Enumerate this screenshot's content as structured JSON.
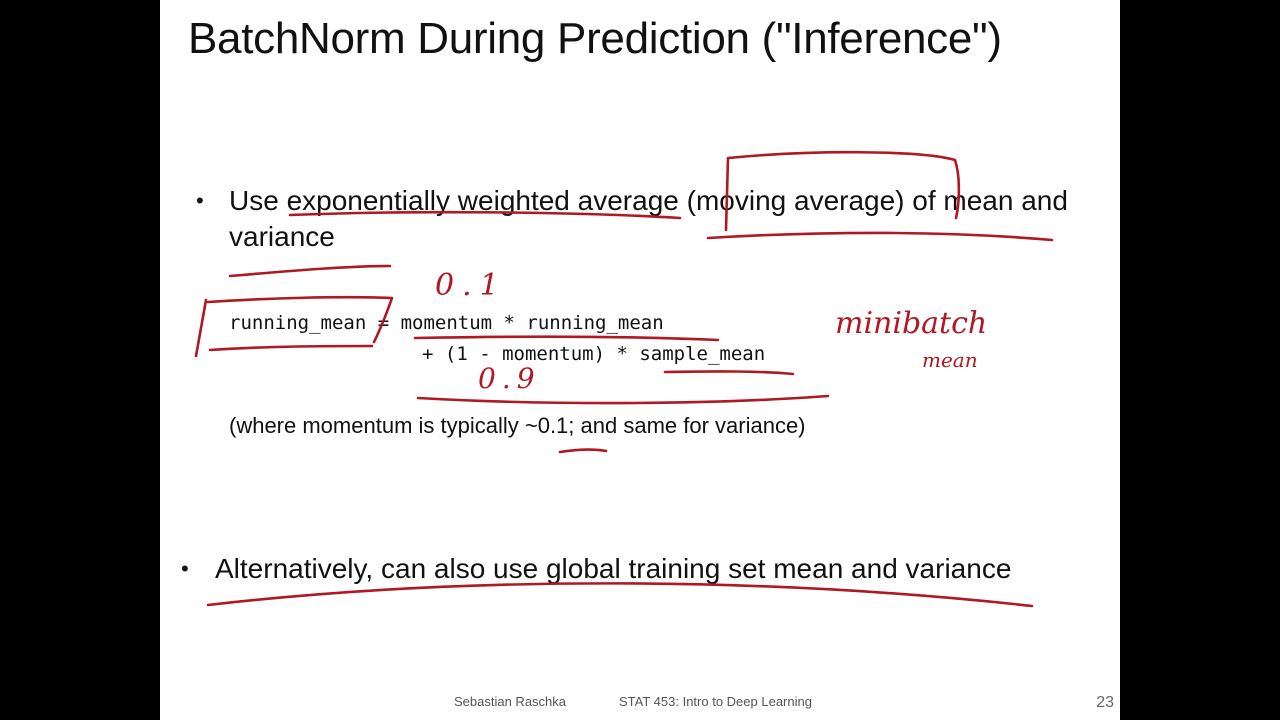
{
  "slide": {
    "title": "BatchNorm During Prediction (\"Inference\")",
    "bullet_symbol": "•",
    "bullet1": "Use exponentially weighted average (moving average) of mean and variance",
    "code_line1": "running_mean = momentum * running_mean",
    "code_line2": "+ (1 - momentum) * sample_mean",
    "note": "(where momentum is typically ~0.1; and same for variance)",
    "bullet2": "Alternatively, can also use global training set mean and variance",
    "footer_author": "Sebastian Raschka",
    "footer_course": "STAT 453: Intro to Deep Learning",
    "page_number": "23"
  },
  "annotations": {
    "momentum_value": "0.1",
    "one_minus_momentum_value": "0.9",
    "sample_mean_note_line1": "minibatch",
    "sample_mean_note_line2": "mean",
    "ink_color": "#b01824"
  }
}
